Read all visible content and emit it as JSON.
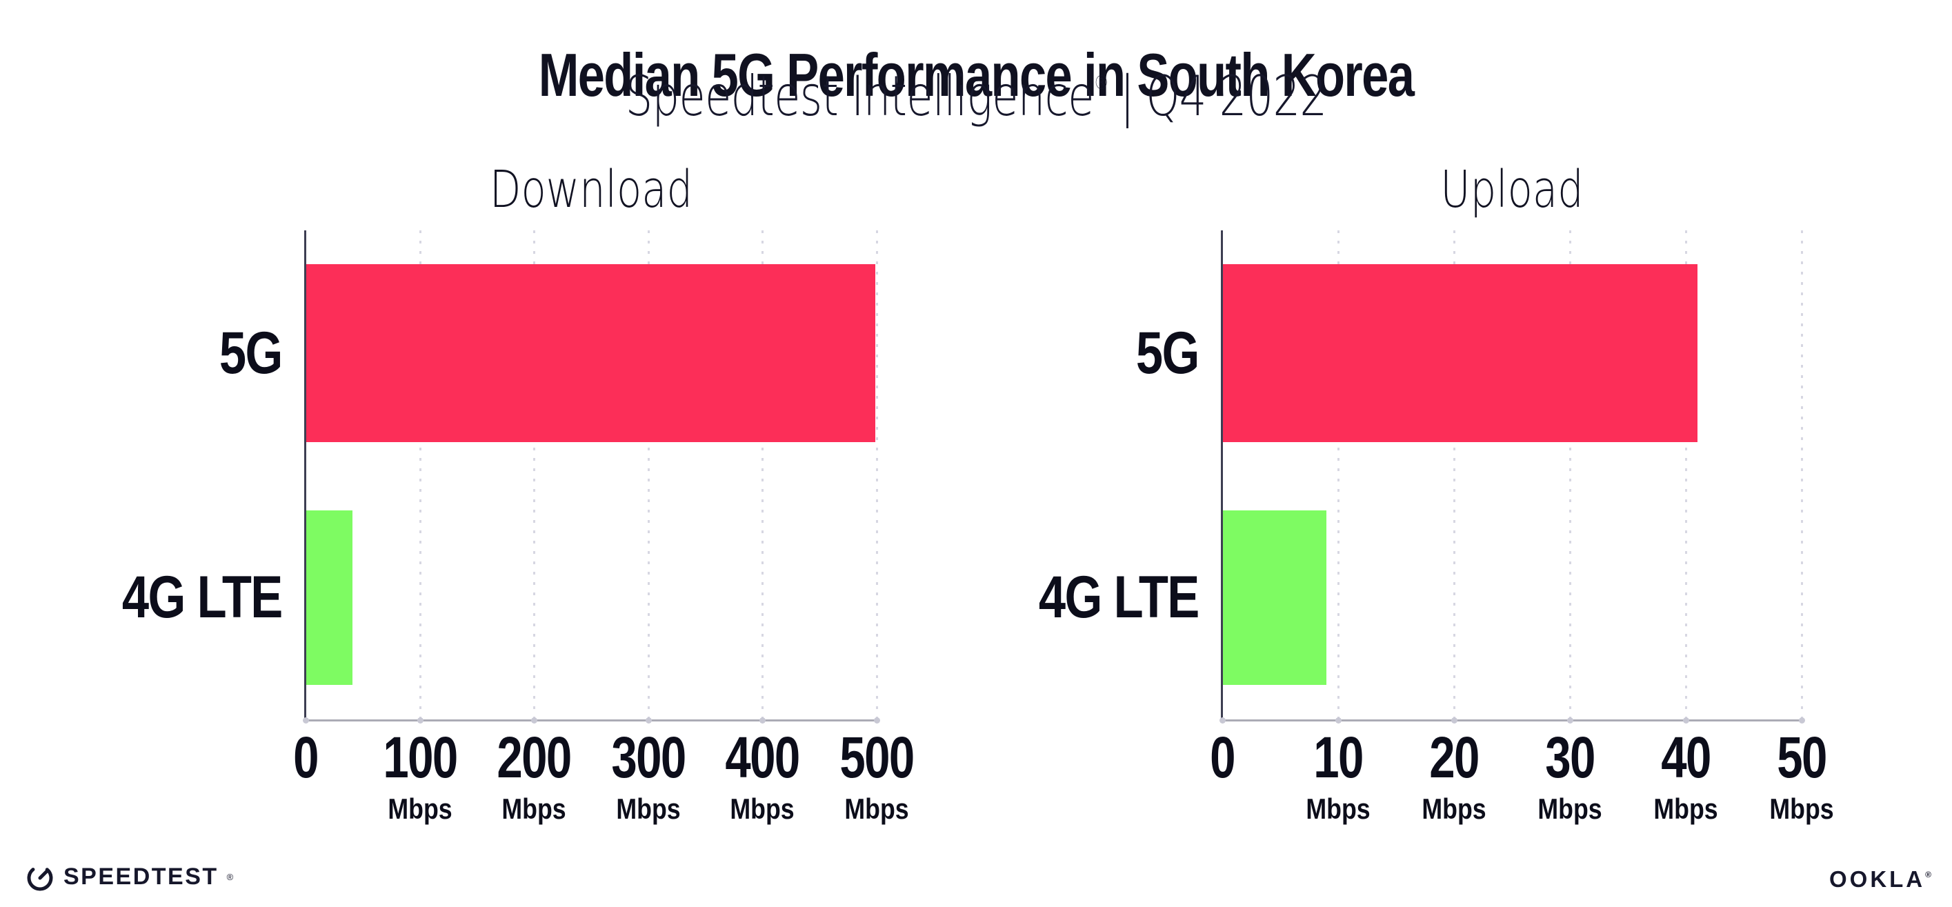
{
  "header": {
    "title": "Median 5G Performance in South Korea",
    "subtitle_brand": "Speedtest Intelligence",
    "subtitle_reg": "®",
    "subtitle_sep": "|",
    "subtitle_period": "Q4 2022"
  },
  "colors": {
    "bar_5g_pink": "#fc2e58",
    "bar_4g_green": "#7efb62",
    "y_axis": "#3d3e52",
    "x_axis": "#ababb5",
    "gridline_dots": "#d7d7e2",
    "text": "#0c0d1a"
  },
  "chart_data": [
    {
      "type": "bar",
      "orientation": "horizontal",
      "title": "Download",
      "categories": [
        "5G",
        "4G LTE"
      ],
      "values": [
        499,
        41
      ],
      "value_unit": "Mbps",
      "xlim": [
        0,
        500
      ],
      "ticks": [
        {
          "value": 0,
          "label": "0",
          "unit": ""
        },
        {
          "value": 100,
          "label": "100",
          "unit": "Mbps"
        },
        {
          "value": 200,
          "label": "200",
          "unit": "Mbps"
        },
        {
          "value": 300,
          "label": "300",
          "unit": "Mbps"
        },
        {
          "value": 400,
          "label": "400",
          "unit": "Mbps"
        },
        {
          "value": 500,
          "label": "500",
          "unit": "Mbps"
        }
      ],
      "bar_colors": [
        "#fc2e58",
        "#7efb62"
      ],
      "grid": "vertical-dotted",
      "legend": false
    },
    {
      "type": "bar",
      "orientation": "horizontal",
      "title": "Upload",
      "categories": [
        "5G",
        "4G LTE"
      ],
      "values": [
        41,
        9
      ],
      "value_unit": "Mbps",
      "xlim": [
        0,
        50
      ],
      "ticks": [
        {
          "value": 0,
          "label": "0",
          "unit": ""
        },
        {
          "value": 10,
          "label": "10",
          "unit": "Mbps"
        },
        {
          "value": 20,
          "label": "20",
          "unit": "Mbps"
        },
        {
          "value": 30,
          "label": "30",
          "unit": "Mbps"
        },
        {
          "value": 40,
          "label": "40",
          "unit": "Mbps"
        },
        {
          "value": 50,
          "label": "50",
          "unit": "Mbps"
        }
      ],
      "bar_colors": [
        "#fc2e58",
        "#7efb62"
      ],
      "grid": "vertical-dotted",
      "legend": false
    }
  ],
  "footer": {
    "speedtest_label": "SPEEDTEST",
    "speedtest_reg": "®",
    "ookla_label": "OOKLA",
    "ookla_reg": "®"
  }
}
